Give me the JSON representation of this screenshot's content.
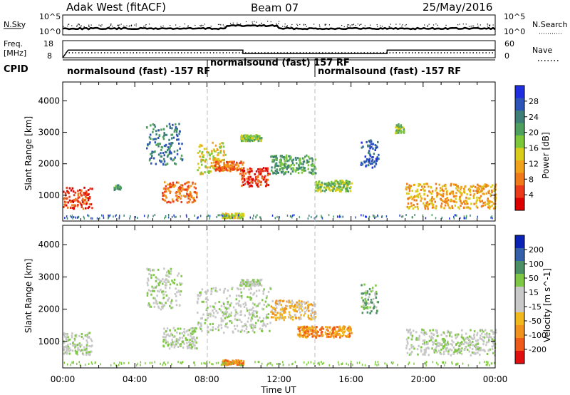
{
  "header": {
    "station": "Adak West (fitACF)",
    "beam": "Beam 07",
    "date": "25/May/2016"
  },
  "noise_panel": {
    "left_label": "N.Sky",
    "right_label": "N.Search",
    "left_ticks": [
      "10^5",
      "10^0"
    ],
    "right_ticks": [
      "10^5",
      "10^0"
    ]
  },
  "freq_panel": {
    "left_label_1": "Freq.",
    "left_label_2": "[MHz]",
    "right_label": "Nave",
    "left_ticks": [
      "18",
      "8"
    ],
    "right_ticks": [
      "60",
      "0"
    ]
  },
  "cpid": {
    "label": "CPID",
    "segments": [
      {
        "text": "normalsound (fast) -157 RF",
        "start_hour": 0
      },
      {
        "text": "normalsound (fast) 157 RF",
        "start_hour": 8
      },
      {
        "text": "normalsound (fast) -157 RF",
        "start_hour": 14
      }
    ]
  },
  "colors": {
    "power_scale": [
      "#1f2fe0",
      "#2c54b8",
      "#3f7f78",
      "#4f9f5f",
      "#7cc83a",
      "#d9cc1a",
      "#f0a21a",
      "#f07a1a",
      "#ea3a1a",
      "#dd0000"
    ],
    "velocity_scale": [
      "#0a23b5",
      "#345fa9",
      "#4c8f64",
      "#7fc845",
      "#c9c9c9",
      "#c9c9c9",
      "#f0b81c",
      "#f0921c",
      "#ee5a1a",
      "#e01010"
    ],
    "scatter_gray": "#c8c8c8"
  },
  "chart_data": [
    {
      "type": "line",
      "title": "",
      "ylabel": "N.Sky",
      "xlim": [
        0,
        24
      ],
      "yscale": "log",
      "note": "noise level roughly constant near 10^1, slight rise ~09:00-12:00"
    },
    {
      "type": "line",
      "ylabel": "Freq. [MHz]",
      "x": [
        0,
        0.3,
        10,
        10,
        18,
        18,
        24
      ],
      "values": [
        8,
        12.5,
        12.5,
        10.5,
        10.5,
        12.5,
        12.5
      ],
      "ylim": [
        8,
        18
      ]
    },
    {
      "type": "heatmap",
      "quantity": "Power",
      "ylabel": "Slant Range [km]",
      "ylim": [
        180,
        4600
      ],
      "yticks": [
        "1000",
        "2000",
        "3000",
        "4000"
      ],
      "colorbar_label": "Power [dB]",
      "colorbar_ticks": [
        "28",
        "24",
        "20",
        "16",
        "12",
        "8",
        "4"
      ],
      "regions": [
        {
          "t0": 0.0,
          "t1": 1.6,
          "r0": 600,
          "r1": 1300,
          "level": 8
        },
        {
          "t0": 2.8,
          "t1": 3.2,
          "r0": 1200,
          "r1": 1350,
          "level": 3
        },
        {
          "t0": 5.5,
          "t1": 7.4,
          "r0": 800,
          "r1": 1450,
          "level": 7
        },
        {
          "t0": 4.6,
          "t1": 6.6,
          "r0": 2000,
          "r1": 3300,
          "level": 2
        },
        {
          "t0": 7.4,
          "t1": 9.0,
          "r0": 1700,
          "r1": 2700,
          "level": 5
        },
        {
          "t0": 8.4,
          "t1": 10.0,
          "r0": 1800,
          "r1": 2100,
          "level": 7
        },
        {
          "t0": 9.8,
          "t1": 11.5,
          "r0": 1300,
          "r1": 1900,
          "level": 8
        },
        {
          "t0": 11.5,
          "t1": 14.0,
          "r0": 1700,
          "r1": 2300,
          "level": 3
        },
        {
          "t0": 8.8,
          "t1": 10.0,
          "r0": 300,
          "r1": 450,
          "level": 5
        },
        {
          "t0": 9.8,
          "t1": 11.0,
          "r0": 2750,
          "r1": 2950,
          "level": 4
        },
        {
          "t0": 14.0,
          "t1": 16.0,
          "r0": 1150,
          "r1": 1500,
          "level": 4
        },
        {
          "t0": 16.5,
          "t1": 17.5,
          "r0": 1900,
          "r1": 2800,
          "level": 1
        },
        {
          "t0": 18.4,
          "t1": 18.9,
          "r0": 3000,
          "r1": 3300,
          "level": 4
        },
        {
          "t0": 19.0,
          "t1": 24.0,
          "r0": 600,
          "r1": 1400,
          "level": 6
        }
      ]
    },
    {
      "type": "heatmap",
      "quantity": "Velocity",
      "ylabel": "Slant Range [km]",
      "xlabel": "Time UT",
      "ylim": [
        180,
        4600
      ],
      "yticks": [
        "1000",
        "2000",
        "3000",
        "4000"
      ],
      "xticks": [
        "00:00",
        "04:00",
        "08:00",
        "12:00",
        "16:00",
        "20:00",
        "00:00"
      ],
      "colorbar_label": "Velocity [m s^-1]",
      "colorbar_ticks": [
        "200",
        "100",
        "50",
        "15",
        "-15",
        "-50",
        "-100",
        "-200"
      ],
      "regions": [
        {
          "t0": 0.0,
          "t1": 1.6,
          "r0": 600,
          "r1": 1300,
          "level": 4
        },
        {
          "t0": 5.5,
          "t1": 7.4,
          "r0": 800,
          "r1": 1450,
          "level": 4
        },
        {
          "t0": 4.6,
          "t1": 6.6,
          "r0": 2000,
          "r1": 3300,
          "level": 4
        },
        {
          "t0": 7.4,
          "t1": 11.5,
          "r0": 1300,
          "r1": 2700,
          "level": 4
        },
        {
          "t0": 11.5,
          "t1": 14.0,
          "r0": 1700,
          "r1": 2300,
          "level": 6
        },
        {
          "t0": 13.0,
          "t1": 16.0,
          "r0": 1150,
          "r1": 1500,
          "level": 7
        },
        {
          "t0": 8.8,
          "t1": 10.0,
          "r0": 300,
          "r1": 450,
          "level": 7
        },
        {
          "t0": 9.8,
          "t1": 11.0,
          "r0": 2750,
          "r1": 2950,
          "level": 4
        },
        {
          "t0": 16.5,
          "t1": 17.5,
          "r0": 1900,
          "r1": 2800,
          "level": 3
        },
        {
          "t0": 19.0,
          "t1": 24.0,
          "r0": 600,
          "r1": 1400,
          "level": 4
        }
      ]
    }
  ]
}
